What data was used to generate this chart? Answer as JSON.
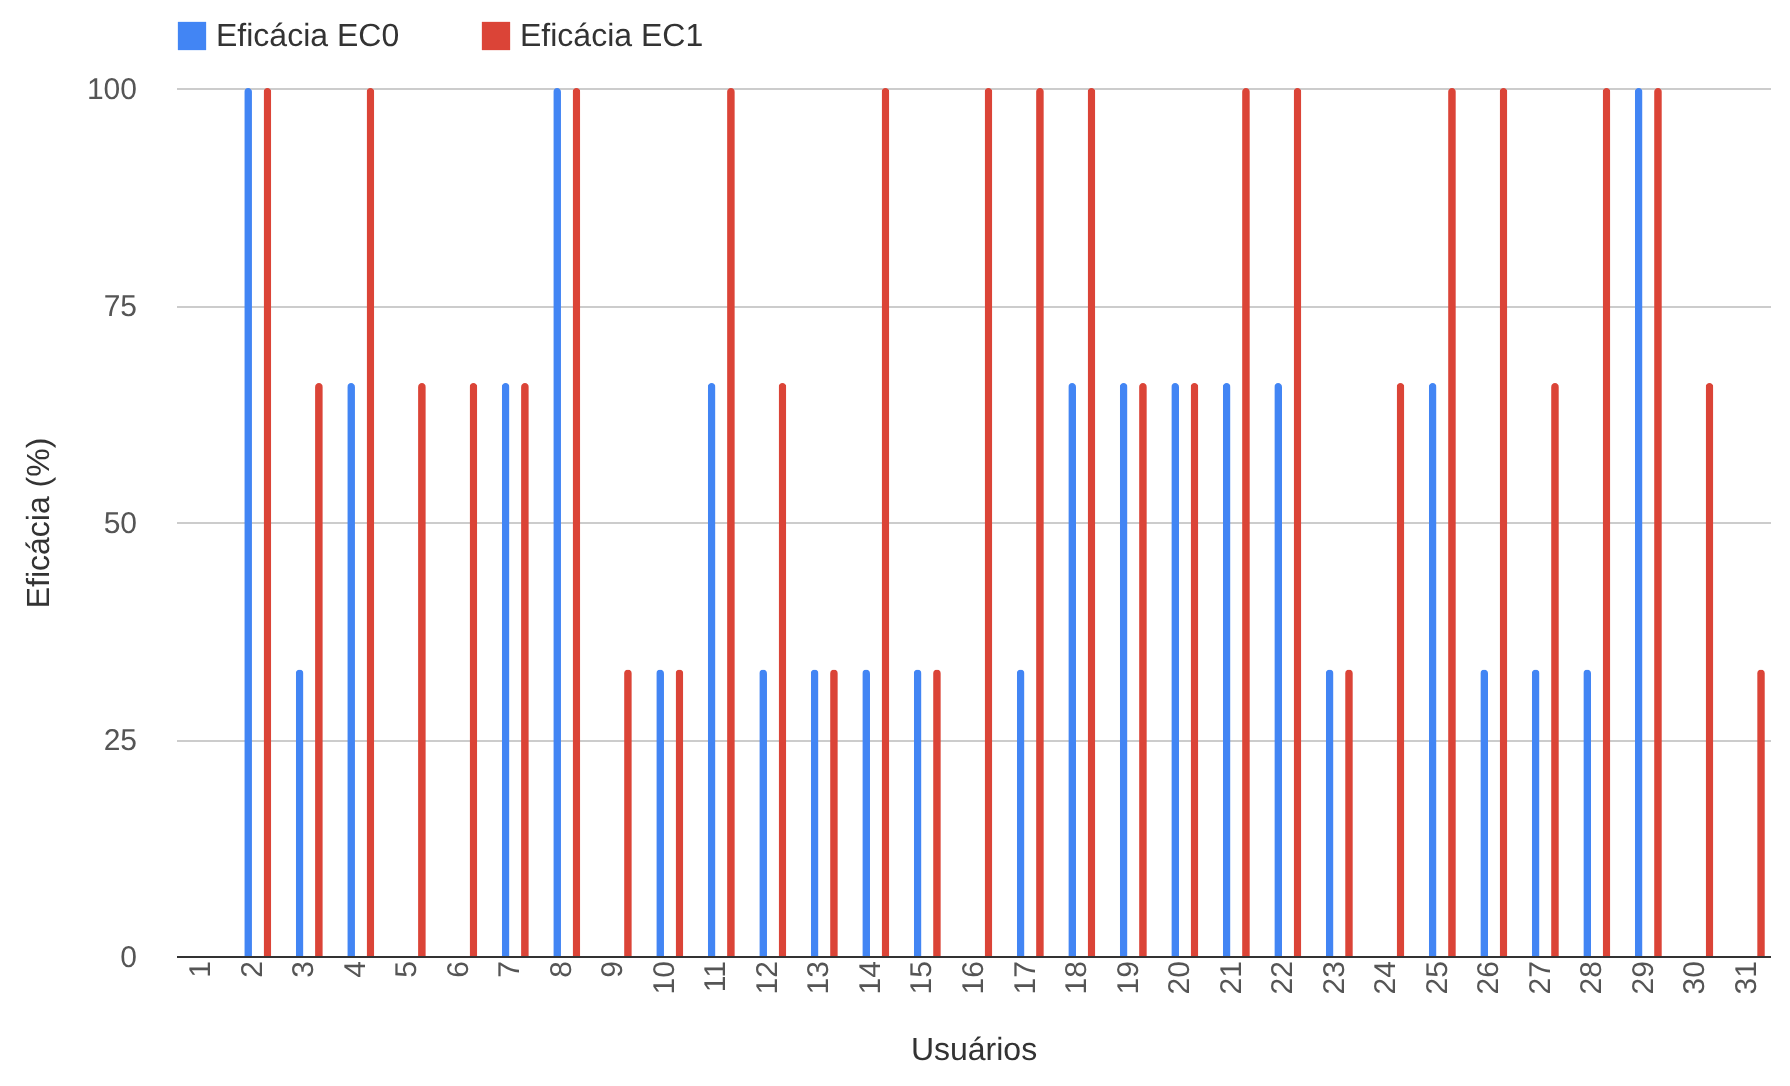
{
  "chart_data": {
    "type": "bar",
    "xlabel": "Usuários",
    "ylabel": "Eficácia (%)",
    "categories": [
      "1",
      "2",
      "3",
      "4",
      "5",
      "6",
      "7",
      "8",
      "9",
      "10",
      "11",
      "12",
      "13",
      "14",
      "15",
      "16",
      "17",
      "18",
      "19",
      "20",
      "21",
      "22",
      "23",
      "24",
      "25",
      "26",
      "27",
      "28",
      "29",
      "30",
      "31"
    ],
    "series": [
      {
        "name": "Eficácia EC0",
        "color": "#4285f4",
        "values": [
          0,
          100,
          33,
          66,
          0,
          0,
          66,
          100,
          0,
          33,
          66,
          33,
          33,
          33,
          33,
          0,
          33,
          66,
          66,
          66,
          66,
          66,
          33,
          0,
          66,
          33,
          33,
          33,
          100,
          0,
          0
        ]
      },
      {
        "name": "Eficácia EC1",
        "color": "#db4437",
        "values": [
          0,
          100,
          66,
          100,
          66,
          66,
          66,
          100,
          33,
          33,
          100,
          66,
          33,
          100,
          33,
          100,
          100,
          100,
          66,
          66,
          100,
          100,
          33,
          66,
          100,
          100,
          66,
          100,
          100,
          66,
          33
        ]
      }
    ],
    "ylim": [
      0,
      100
    ],
    "yticks": [
      0,
      25,
      50,
      75,
      100
    ],
    "grid": "y",
    "legend": "top"
  }
}
